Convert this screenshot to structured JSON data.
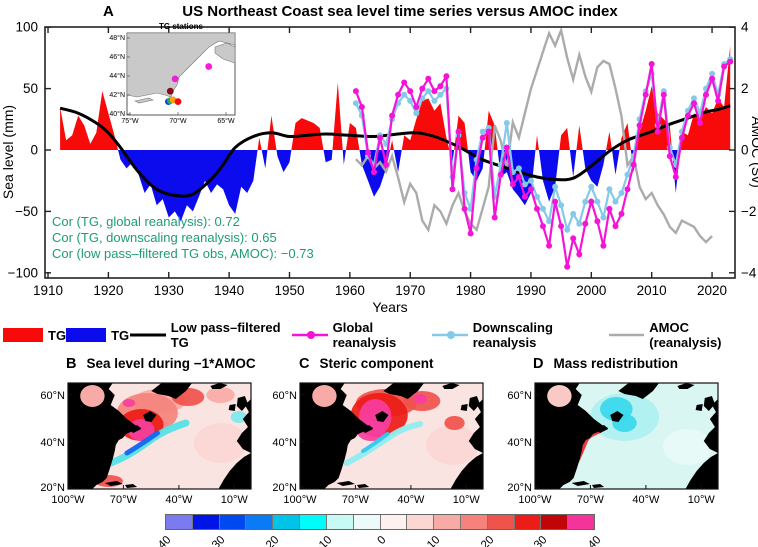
{
  "panel_a": {
    "label": "A",
    "title": "US Northeast Coast sea level time series  versus  AMOC index",
    "xlabel": "Years",
    "ylabel_left": "Sea level (mm)",
    "ylabel_right": "AMOC (Sv)",
    "xticks": [
      1910,
      1920,
      1930,
      1940,
      1950,
      1960,
      1970,
      1980,
      1990,
      2000,
      2010,
      2020
    ],
    "yticks_left": [
      100,
      50,
      0,
      -50,
      -100
    ],
    "yticks_right": [
      4,
      2,
      0,
      -2,
      -4
    ],
    "correlations": [
      "Cor (TG, global reanalysis): 0.72",
      "Cor (TG, downscaling reanalysis): 0.65",
      "Cor (low pass–filtered TG obs, AMOC): −0.73"
    ],
    "correlation_color": "#1E9C74",
    "inset": {
      "title": "TG stations",
      "lat_labels": [
        "48°N",
        "46°N",
        "44°N",
        "42°N",
        "40°N"
      ],
      "lon_labels": [
        "75°W",
        "70°W",
        "65°W"
      ],
      "station_colors": [
        "#1040E0",
        "#22B14C",
        "#FF9F1C",
        "#F20C0C",
        "#8B0A1A",
        "#F41ED9",
        "#F41ED9"
      ]
    }
  },
  "legend": {
    "items": [
      {
        "label": "TG",
        "type": "box",
        "color": "#F90A0A"
      },
      {
        "label": "TG",
        "type": "box",
        "color": "#0B0BEE"
      },
      {
        "label": "Low pass–filtered TG",
        "type": "line",
        "color": "#000000"
      },
      {
        "label": "Global reanalysis",
        "type": "line-dot",
        "color": "#F414D8"
      },
      {
        "label": "Downscaling reanalysis",
        "type": "line-dot",
        "color": "#85C9E9"
      },
      {
        "label": "AMOC (reanalysis)",
        "type": "line",
        "color": "#ABABAB"
      }
    ]
  },
  "maps": [
    {
      "label": "B",
      "title": "Sea level during −1*AMOC",
      "lat_ticks": [
        "60°N",
        "40°N",
        "20°N"
      ],
      "lon_ticks": [
        "100°W",
        "70°W",
        "40°W",
        "10°W"
      ]
    },
    {
      "label": "C",
      "title": "Steric component",
      "lat_ticks": [
        "60°N",
        "40°N",
        "20°N"
      ],
      "lon_ticks": [
        "100°W",
        "70°W",
        "40°W",
        "10°W"
      ]
    },
    {
      "label": "D",
      "title": "Mass redistribution",
      "lat_ticks": [
        "60°N",
        "40°N",
        "20°N"
      ],
      "lon_ticks": [
        "100°W",
        "70°W",
        "40°W",
        "10°W"
      ]
    }
  ],
  "colorbar": {
    "ticks": [
      "−40",
      "−30",
      "−20",
      "−10",
      "0",
      "10",
      "20",
      "30",
      "40"
    ],
    "colors": [
      "#7B7BEF",
      "#0014E6",
      "#0049F0",
      "#0B7BF5",
      "#00C3E8",
      "#00FBFB",
      "#C8FAF4",
      "#ECFBF9",
      "#FDF0EF",
      "#FBD7D4",
      "#F8ABA6",
      "#F5837C",
      "#F0534B",
      "#EC1C16",
      "#C00508",
      "#F5349B"
    ]
  },
  "chart_data": {
    "type": "line",
    "title": "US Northeast Coast sea level time series versus AMOC index",
    "xlabel": "Years",
    "ylabel_left": "Sea level (mm)",
    "ylabel_right": "AMOC (Sv)",
    "xlim": [
      1909.5,
      2023.8
    ],
    "ylim_left": [
      -100,
      100
    ],
    "ylim_right": [
      -4,
      4
    ],
    "series": [
      {
        "name": "TG (annual, red positive / blue negative fill)",
        "axis": "left",
        "x_start": 1912,
        "values": [
          35,
          8,
          12,
          28,
          20,
          5,
          14,
          48,
          30,
          12,
          -8,
          -15,
          -10,
          -20,
          -35,
          -28,
          -45,
          -40,
          -55,
          -50,
          -58,
          -45,
          -50,
          -38,
          -25,
          -35,
          -28,
          -32,
          -45,
          -52,
          -30,
          -35,
          -25,
          10,
          -15,
          28,
          -5,
          -18,
          -10,
          22,
          26,
          24,
          22,
          18,
          -10,
          -8,
          55,
          -12,
          22,
          18,
          -12,
          -25,
          -38,
          -30,
          -15,
          8,
          -18,
          12,
          8,
          25,
          40,
          42,
          32,
          38,
          10,
          -10,
          28,
          22,
          -18,
          -25,
          -15,
          32,
          20,
          -22,
          -18,
          -32,
          -38,
          -45,
          -35,
          12,
          -25,
          -42,
          -30,
          12,
          18,
          -22,
          20,
          -15,
          -25,
          -30,
          -12,
          15,
          -20,
          10,
          22,
          -18,
          15,
          32,
          52,
          30,
          25,
          20,
          -35,
          15,
          12,
          30,
          25,
          35,
          30,
          42,
          35,
          85
        ]
      },
      {
        "name": "Low pass-filtered TG",
        "axis": "left",
        "points": [
          [
            1912,
            34
          ],
          [
            1915,
            30
          ],
          [
            1918,
            22
          ],
          [
            1920,
            14
          ],
          [
            1922,
            2
          ],
          [
            1925,
            -18
          ],
          [
            1928,
            -32
          ],
          [
            1931,
            -37
          ],
          [
            1934,
            -36
          ],
          [
            1937,
            -24
          ],
          [
            1939,
            -12
          ],
          [
            1941,
            2
          ],
          [
            1944,
            11
          ],
          [
            1947,
            14
          ],
          [
            1950,
            11
          ],
          [
            1953,
            12
          ],
          [
            1956,
            13
          ],
          [
            1960,
            12
          ],
          [
            1964,
            11
          ],
          [
            1968,
            13
          ],
          [
            1971,
            14
          ],
          [
            1974,
            11
          ],
          [
            1977,
            5
          ],
          [
            1979,
            0
          ],
          [
            1982,
            -8
          ],
          [
            1985,
            -13
          ],
          [
            1988,
            -18
          ],
          [
            1991,
            -22
          ],
          [
            1994,
            -24
          ],
          [
            1997,
            -23
          ],
          [
            2000,
            -13
          ],
          [
            2003,
            -1
          ],
          [
            2006,
            8
          ],
          [
            2010,
            15
          ],
          [
            2013,
            21
          ],
          [
            2016,
            26
          ],
          [
            2019,
            31
          ],
          [
            2021,
            33
          ],
          [
            2023,
            36
          ]
        ]
      },
      {
        "name": "Global reanalysis",
        "axis": "left",
        "x_start": 1961,
        "values": [
          48,
          35,
          -2,
          -18,
          10,
          -12,
          28,
          45,
          55,
          48,
          35,
          50,
          58,
          48,
          52,
          60,
          -32,
          15,
          -48,
          -68,
          -15,
          10,
          15,
          -55,
          -20,
          2,
          -28,
          -22,
          -38,
          -32,
          -48,
          -62,
          -78,
          -42,
          -62,
          -95,
          -72,
          -85,
          -60,
          -42,
          -58,
          -78,
          -48,
          -62,
          -52,
          -32,
          -12,
          20,
          45,
          70,
          15,
          45,
          -5,
          -22,
          10,
          28,
          38,
          22,
          45,
          58,
          40,
          68,
          72
        ]
      },
      {
        "name": "Downscaling reanalysis",
        "axis": "left",
        "x_start": 1961,
        "values": [
          38,
          28,
          -5,
          -12,
          12,
          5,
          25,
          38,
          45,
          40,
          30,
          42,
          48,
          40,
          45,
          50,
          -22,
          12,
          -35,
          -48,
          -8,
          15,
          18,
          -38,
          -12,
          22,
          -18,
          -15,
          -28,
          -25,
          -38,
          -48,
          -58,
          -30,
          -45,
          -65,
          -52,
          -60,
          -42,
          -30,
          -42,
          -55,
          -32,
          -42,
          -35,
          -20,
          -5,
          25,
          48,
          62,
          20,
          48,
          2,
          -12,
          15,
          32,
          42,
          30,
          50,
          62,
          45,
          70,
          74
        ]
      },
      {
        "name": "AMOC (reanalysis)",
        "axis": "right",
        "x_start": 1961,
        "values": [
          -0.3,
          -0.5,
          -0.2,
          -0.6,
          -0.4,
          -0.7,
          -0.2,
          -0.9,
          -1.7,
          -1.1,
          -1.4,
          -2.3,
          -2.6,
          -1.8,
          -2.0,
          -2.4,
          -1.8,
          -1.4,
          -2.0,
          -2.4,
          -2.6,
          -1.9,
          -1.2,
          0.8,
          0.3,
          -0.6,
          0.9,
          0.4,
          1.2,
          2.0,
          2.6,
          3.2,
          3.8,
          3.4,
          3.9,
          3.0,
          2.3,
          3.1,
          2.4,
          1.9,
          2.7,
          2.9,
          2.8,
          2.0,
          1.1,
          -0.5,
          -0.2,
          -1.2,
          -1.6,
          -1.4,
          -1.8,
          -2.1,
          -2.5,
          -2.7,
          -2.3,
          -2.4,
          -2.5,
          -2.8,
          -3.0,
          -2.8
        ]
      }
    ]
  }
}
